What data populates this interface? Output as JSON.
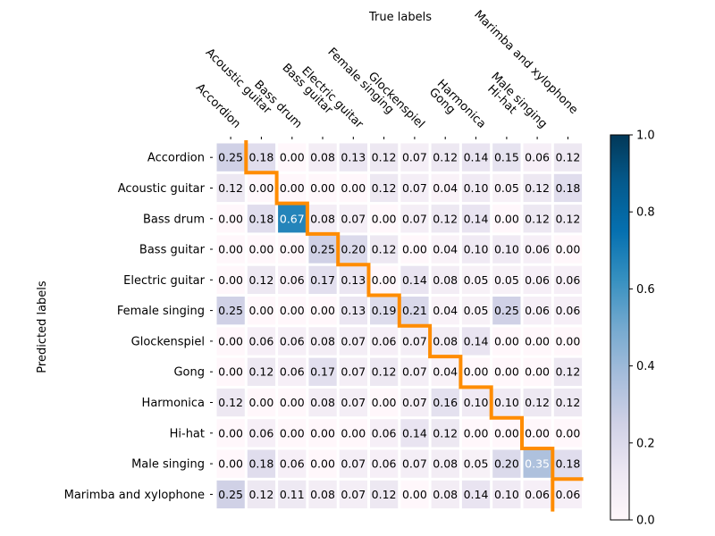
{
  "chart_data": {
    "type": "heatmap",
    "title": "True labels",
    "xlabel": "True labels",
    "ylabel": "Predicted labels",
    "x_categories": [
      "Accordion",
      "Acoustic guitar",
      "Bass drum",
      "Bass guitar",
      "Electric guitar",
      "Female singing",
      "Glockenspiel",
      "Gong",
      "Harmonica",
      "Hi-hat",
      "Male singing",
      "Marimba and xylophone"
    ],
    "y_categories": [
      "Accordion",
      "Acoustic guitar",
      "Bass drum",
      "Bass guitar",
      "Electric guitar",
      "Female singing",
      "Glockenspiel",
      "Gong",
      "Harmonica",
      "Hi-hat",
      "Male singing",
      "Marimba and xylophone"
    ],
    "values": [
      [
        0.25,
        0.18,
        0.0,
        0.08,
        0.13,
        0.12,
        0.07,
        0.12,
        0.14,
        0.15,
        0.06,
        0.12
      ],
      [
        0.12,
        0.0,
        0.0,
        0.0,
        0.0,
        0.12,
        0.07,
        0.04,
        0.1,
        0.05,
        0.12,
        0.18
      ],
      [
        0.0,
        0.18,
        0.67,
        0.08,
        0.07,
        0.0,
        0.07,
        0.12,
        0.14,
        0.0,
        0.12,
        0.12
      ],
      [
        0.0,
        0.0,
        0.0,
        0.25,
        0.2,
        0.12,
        0.0,
        0.04,
        0.1,
        0.1,
        0.06,
        0.0
      ],
      [
        0.0,
        0.12,
        0.06,
        0.17,
        0.13,
        0.0,
        0.14,
        0.08,
        0.05,
        0.05,
        0.06,
        0.06
      ],
      [
        0.25,
        0.0,
        0.0,
        0.0,
        0.13,
        0.19,
        0.21,
        0.04,
        0.05,
        0.25,
        0.06,
        0.06
      ],
      [
        0.0,
        0.06,
        0.06,
        0.08,
        0.07,
        0.06,
        0.07,
        0.08,
        0.14,
        0.0,
        0.0,
        0.0
      ],
      [
        0.0,
        0.12,
        0.06,
        0.17,
        0.07,
        0.12,
        0.07,
        0.04,
        0.0,
        0.0,
        0.0,
        0.12
      ],
      [
        0.12,
        0.0,
        0.0,
        0.08,
        0.07,
        0.0,
        0.07,
        0.16,
        0.1,
        0.1,
        0.12,
        0.12
      ],
      [
        0.0,
        0.06,
        0.0,
        0.0,
        0.0,
        0.06,
        0.14,
        0.12,
        0.0,
        0.0,
        0.0,
        0.0
      ],
      [
        0.0,
        0.18,
        0.06,
        0.0,
        0.07,
        0.06,
        0.07,
        0.08,
        0.05,
        0.2,
        0.35,
        0.18
      ],
      [
        0.25,
        0.12,
        0.11,
        0.08,
        0.07,
        0.12,
        0.0,
        0.08,
        0.14,
        0.1,
        0.06,
        0.06
      ]
    ],
    "colorbar": {
      "min": 0.0,
      "max": 1.0,
      "ticks": [
        "0.0",
        "0.2",
        "0.4",
        "0.6",
        "0.8",
        "1.0"
      ],
      "colormap": "PuBu"
    },
    "highlight_color": "#ff8c00",
    "grid": false
  }
}
